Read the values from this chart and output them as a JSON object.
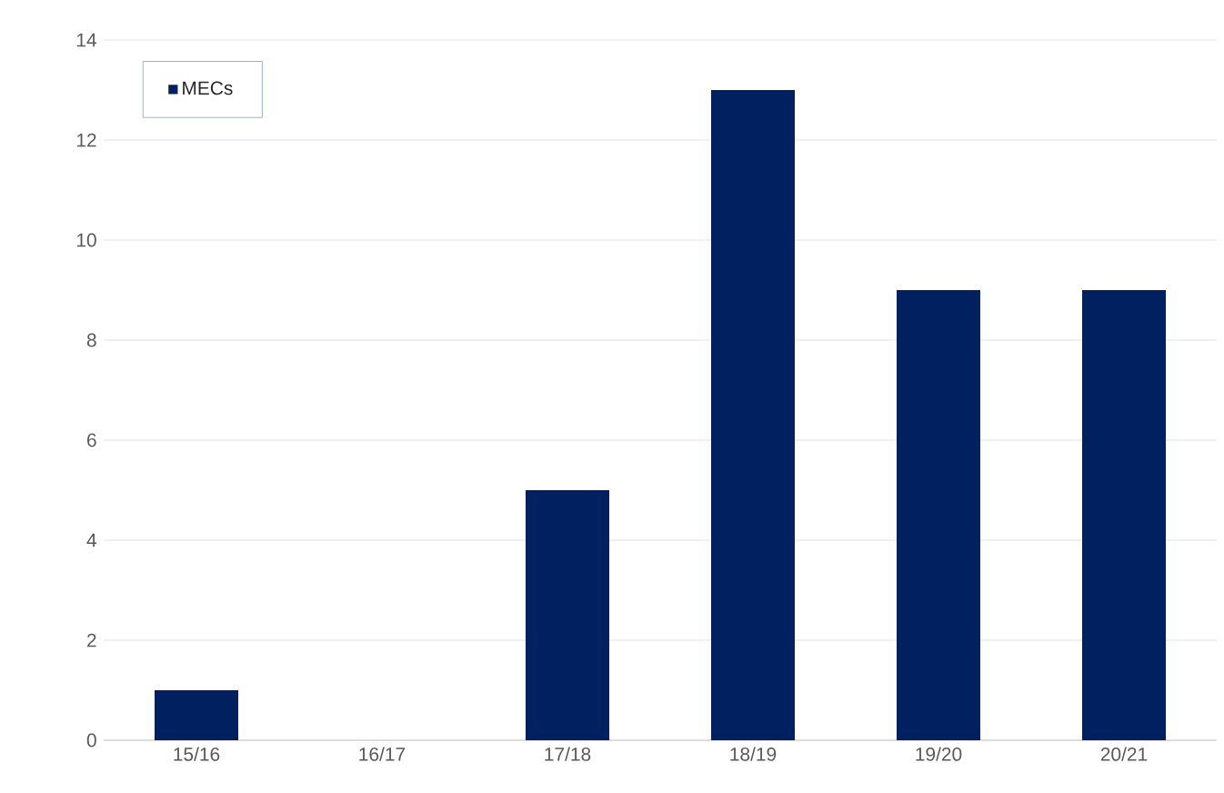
{
  "chart_data": {
    "type": "bar",
    "categories": [
      "15/16",
      "16/17",
      "17/18",
      "18/19",
      "19/20",
      "20/21"
    ],
    "series": [
      {
        "name": "MECs",
        "color": "#002060",
        "values": [
          1,
          0,
          5,
          13,
          9,
          9
        ]
      }
    ],
    "ylim": [
      0,
      14
    ],
    "yticks": [
      0,
      2,
      4,
      6,
      8,
      10,
      12,
      14
    ],
    "grid": "y",
    "legend": "top left"
  }
}
